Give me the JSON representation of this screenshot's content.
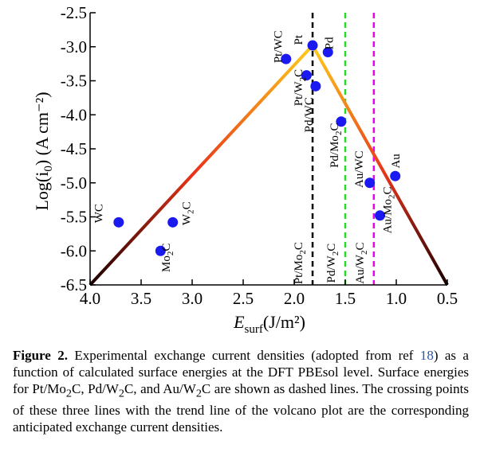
{
  "chart_data": {
    "type": "scatter",
    "title": "",
    "xlabel": "E",
    "xlabel_sub": "surf",
    "xlabel_unit": "(J/m²)",
    "ylabel": "Log(i",
    "ylabel_sub": "0",
    "ylabel_unit": ") (A cm⁻²)",
    "xlim": [
      4.0,
      0.5
    ],
    "ylim": [
      -6.5,
      -2.5
    ],
    "x_reversed": true,
    "xticks": [
      4.0,
      3.5,
      3.0,
      2.5,
      2.0,
      1.5,
      1.0,
      0.5
    ],
    "xtick_labels": [
      "4.0",
      "3.5",
      "3.0",
      "2.5",
      "2.0",
      "1.5",
      "1.0",
      "0.5"
    ],
    "yticks": [
      -2.5,
      -3.0,
      -3.5,
      -4.0,
      -4.5,
      -5.0,
      -5.5,
      -6.0,
      -6.5
    ],
    "ytick_labels": [
      "-2.5",
      "-3.0",
      "-3.5",
      "-4.0",
      "-4.5",
      "-5.0",
      "-5.5",
      "-6.0",
      "-6.5"
    ],
    "grid": false,
    "points": [
      {
        "label": "WC",
        "sub": "",
        "x": 3.72,
        "y": -5.58,
        "lx": 3.88,
        "ly": -5.45
      },
      {
        "label": "Mo",
        "sub": "2",
        "tail": "C",
        "x": 3.31,
        "y": -6.0,
        "lx": 3.22,
        "ly": -6.1
      },
      {
        "label": "W",
        "sub": "2",
        "tail": "C",
        "x": 3.19,
        "y": -5.58,
        "lx": 3.02,
        "ly": -5.45
      },
      {
        "label": "Pt/WC",
        "sub": "",
        "x": 2.08,
        "y": -3.18,
        "lx": 2.12,
        "ly": -3.0
      },
      {
        "label": "Pt",
        "sub": "",
        "x": 1.82,
        "y": -2.98,
        "lx": 1.92,
        "ly": -2.9
      },
      {
        "label": "Pd",
        "sub": "",
        "x": 1.67,
        "y": -3.08,
        "lx": 1.62,
        "ly": -2.95
      },
      {
        "label": "Pt/W",
        "sub": "2",
        "tail": "C",
        "x": 1.88,
        "y": -3.42,
        "lx": 1.92,
        "ly": -3.6
      },
      {
        "label": "Pd/WC",
        "sub": "",
        "x": 1.79,
        "y": -3.58,
        "lx": 1.82,
        "ly": -4.0
      },
      {
        "label": "Pd/Mo",
        "sub": "2",
        "tail": "C",
        "x": 1.54,
        "y": -4.1,
        "lx": 1.57,
        "ly": -4.45
      },
      {
        "label": "Au/WC",
        "sub": "",
        "x": 1.26,
        "y": -5.0,
        "lx": 1.33,
        "ly": -4.8
      },
      {
        "label": "Au",
        "sub": "",
        "x": 1.01,
        "y": -4.9,
        "lx": 0.97,
        "ly": -4.68
      },
      {
        "label": "Au/Mo",
        "sub": "2",
        "tail": "C",
        "x": 1.16,
        "y": -5.48,
        "lx": 1.05,
        "ly": -5.4
      }
    ],
    "volcano": {
      "apex": [
        1.82,
        -2.98
      ],
      "left_end": [
        4.0,
        -6.5
      ],
      "right_end": [
        0.5,
        -6.5
      ]
    },
    "dashed_lines": [
      {
        "x": 1.82,
        "color": "#000000",
        "label": "Pt/Mo",
        "sub": "2",
        "tail": "C",
        "ly": -6.18
      },
      {
        "x": 1.5,
        "color": "#22dd22",
        "label": "Pd/W",
        "sub": "2",
        "tail": "C",
        "ly": -6.18
      },
      {
        "x": 1.22,
        "color": "#ee00ee",
        "label": "Au/W",
        "sub": "2",
        "tail": "C",
        "ly": -6.18
      }
    ],
    "colors": {
      "points": "#1a1af0",
      "volcano_top": "#ffd21a",
      "volcano_mid": "#e8321a",
      "volcano_bottom": "#1a0000"
    }
  },
  "caption": {
    "lead": "Figure 2.",
    "part1": " Experimental exchange current densities (adopted from ref ",
    "ref": "18",
    "part2": ") as a function of calculated surface energies at the DFT PBEsol level. Surface energies for Pt/Mo",
    "s1": "2",
    "part3": "C, Pd/W",
    "s2": "2",
    "part4": "C, and Au/W",
    "s3": "2",
    "part5": "C are shown as dashed lines. The crossing points of these three lines with the trend line of the volcano plot are the corresponding anticipated exchange current densities."
  }
}
